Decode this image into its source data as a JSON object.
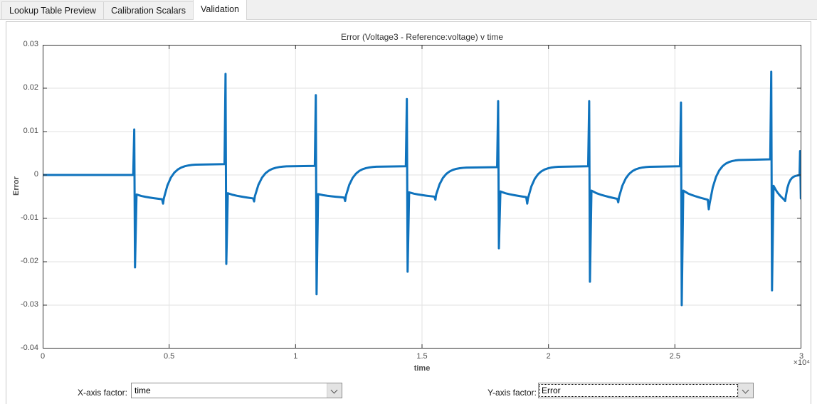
{
  "tabs": [
    {
      "label": "Lookup Table Preview",
      "active": false
    },
    {
      "label": "Calibration Scalars",
      "active": false
    },
    {
      "label": "Validation",
      "active": true
    }
  ],
  "controls": {
    "x_factor_label": "X-axis factor:",
    "x_factor_value": "time",
    "y_factor_label": "Y-axis factor:",
    "y_factor_value": "Error"
  },
  "chart_data": {
    "type": "line",
    "title": "Error (Voltage3 - Reference:voltage) v time",
    "xlabel": "time",
    "ylabel": "Error",
    "x_scale_label": "×10⁴",
    "x_unit_exponent": 4,
    "xlim": [
      0,
      3
    ],
    "ylim": [
      -0.04,
      0.03
    ],
    "x_tick_labels": [
      "0",
      "0.5",
      "1",
      "1.5",
      "2",
      "2.5",
      "3"
    ],
    "x_tick_values": [
      0,
      0.5,
      1,
      1.5,
      2,
      2.5,
      3
    ],
    "y_tick_labels": [
      "0.03",
      "0.02",
      "0.01",
      "0",
      "-0.01",
      "-0.02",
      "-0.03",
      "-0.04"
    ],
    "y_tick_values": [
      0.03,
      0.02,
      0.01,
      0,
      -0.01,
      -0.02,
      -0.03,
      -0.04
    ],
    "grid": true,
    "line_color": "#0f73bd",
    "grid_color": "#e2e2e2",
    "axis_color": "#333333",
    "initial_segment": {
      "x_start": 0,
      "x_end": 0.358,
      "value": 0
    },
    "periods": [
      {
        "spike_x": 0.362,
        "peak": 0.0105,
        "trough": -0.0213,
        "settle": -0.0045,
        "dip": -0.0056,
        "notch_x": 0.476,
        "notch_low": -0.0066,
        "plateau": 0.0025,
        "rise_len": 0.125
      },
      {
        "spike_x": 0.723,
        "peak": 0.0233,
        "trough": -0.0205,
        "settle": -0.0042,
        "dip": -0.0054,
        "notch_x": 0.836,
        "notch_low": -0.0061,
        "plateau": 0.0021,
        "rise_len": 0.125
      },
      {
        "spike_x": 1.08,
        "peak": 0.0184,
        "trough": -0.0275,
        "settle": -0.0044,
        "dip": -0.0052,
        "notch_x": 1.196,
        "notch_low": -0.006,
        "plateau": 0.002,
        "rise_len": 0.12
      },
      {
        "spike_x": 1.44,
        "peak": 0.0175,
        "trough": -0.0223,
        "settle": -0.004,
        "dip": -0.005,
        "notch_x": 1.553,
        "notch_low": -0.0057,
        "plateau": 0.0018,
        "rise_len": 0.12
      },
      {
        "spike_x": 1.801,
        "peak": 0.017,
        "trough": -0.0169,
        "settle": -0.0038,
        "dip": -0.0051,
        "notch_x": 1.916,
        "notch_low": -0.0066,
        "plateau": 0.002,
        "rise_len": 0.12
      },
      {
        "spike_x": 2.161,
        "peak": 0.017,
        "trough": -0.0246,
        "settle": -0.0036,
        "dip": -0.0055,
        "notch_x": 2.276,
        "notch_low": -0.0063,
        "plateau": 0.002,
        "rise_len": 0.12
      },
      {
        "spike_x": 2.524,
        "peak": 0.0167,
        "trough": -0.03,
        "settle": -0.0036,
        "dip": -0.0057,
        "notch_x": 2.634,
        "notch_low": -0.0079,
        "plateau": 0.0036,
        "rise_len": 0.115
      },
      {
        "spike_x": 2.881,
        "peak": 0.0238,
        "trough": -0.0266,
        "settle": -0.0025,
        "dip": -0.0057,
        "notch_x": 2.936,
        "notch_low": -0.006,
        "plateau": 0.0,
        "rise_len": 0.052
      }
    ],
    "final_spike": {
      "x": 2.995,
      "top": 0.0055,
      "bottom": -0.0054
    }
  }
}
